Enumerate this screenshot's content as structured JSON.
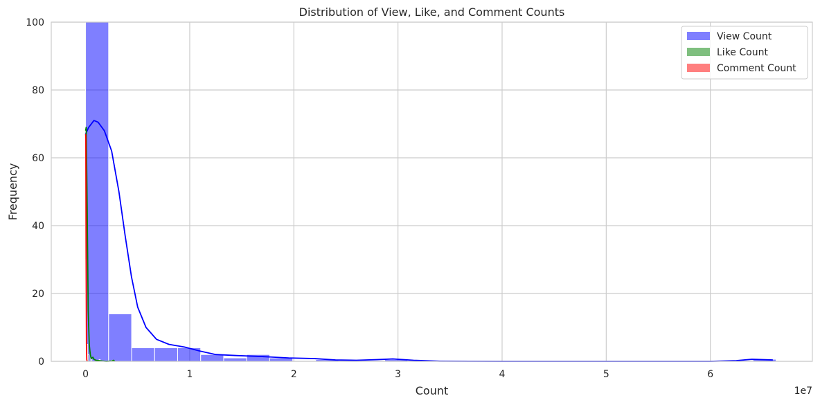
{
  "chart_data": {
    "type": "histogram",
    "title": "Distribution of View, Like, and Comment Counts",
    "xlabel": "Count",
    "ylabel": "Frequency",
    "x_offset_label": "1e7",
    "xlim": [
      -3300000,
      69800000
    ],
    "ylim": [
      0,
      100
    ],
    "x_ticks": [
      {
        "value": 0,
        "label": "0"
      },
      {
        "value": 10000000,
        "label": "1"
      },
      {
        "value": 20000000,
        "label": "2"
      },
      {
        "value": 30000000,
        "label": "3"
      },
      {
        "value": 40000000,
        "label": "4"
      },
      {
        "value": 50000000,
        "label": "5"
      },
      {
        "value": 60000000,
        "label": "6"
      }
    ],
    "y_ticks": [
      0,
      20,
      40,
      60,
      80,
      100
    ],
    "grid": true,
    "legend_position": "top-right",
    "series": [
      {
        "name": "View Count",
        "color": "#0000ff",
        "kde_color": "#0000ff",
        "bin_width": 2210000,
        "bins": [
          {
            "start": 0,
            "count": 100
          },
          {
            "start": 2210000,
            "count": 14
          },
          {
            "start": 4420000,
            "count": 4
          },
          {
            "start": 6630000,
            "count": 4
          },
          {
            "start": 8840000,
            "count": 4
          },
          {
            "start": 11050000,
            "count": 2
          },
          {
            "start": 13260000,
            "count": 1
          },
          {
            "start": 15470000,
            "count": 2
          },
          {
            "start": 17680000,
            "count": 1
          },
          {
            "start": 19890000,
            "count": 0
          },
          {
            "start": 22100000,
            "count": 0.5
          },
          {
            "start": 28730000,
            "count": 0.5
          },
          {
            "start": 64100000,
            "count": 0.6
          }
        ],
        "kde": [
          [
            0,
            67
          ],
          [
            300000,
            69
          ],
          [
            800000,
            71
          ],
          [
            1200000,
            70.5
          ],
          [
            1800000,
            68
          ],
          [
            2500000,
            62
          ],
          [
            3200000,
            50
          ],
          [
            3800000,
            37
          ],
          [
            4400000,
            25
          ],
          [
            5000000,
            16
          ],
          [
            5800000,
            10
          ],
          [
            6800000,
            6.5
          ],
          [
            8000000,
            5
          ],
          [
            9500000,
            4.2
          ],
          [
            11000000,
            3
          ],
          [
            12500000,
            2
          ],
          [
            14500000,
            1.7
          ],
          [
            17000000,
            1.4
          ],
          [
            19500000,
            1
          ],
          [
            22000000,
            0.8
          ],
          [
            24000000,
            0.4
          ],
          [
            26000000,
            0.3
          ],
          [
            28000000,
            0.5
          ],
          [
            29500000,
            0.7
          ],
          [
            31500000,
            0.3
          ],
          [
            34000000,
            0.05
          ],
          [
            40000000,
            0
          ],
          [
            60000000,
            0
          ],
          [
            62500000,
            0.2
          ],
          [
            64000000,
            0.6
          ],
          [
            66000000,
            0.4
          ]
        ]
      },
      {
        "name": "Like Count",
        "color": "#008000",
        "kde_color": "#008000",
        "bin_width": 100000,
        "bins": [
          {
            "start": 0,
            "count": 10
          },
          {
            "start": 100000,
            "count": 5
          },
          {
            "start": 200000,
            "count": 2
          },
          {
            "start": 500000,
            "count": 1
          },
          {
            "start": 1300000,
            "count": 0.5
          },
          {
            "start": 2500000,
            "count": 0.3
          }
        ],
        "kde": [
          [
            0,
            68
          ],
          [
            60000,
            69
          ],
          [
            150000,
            45
          ],
          [
            250000,
            15
          ],
          [
            350000,
            5
          ],
          [
            450000,
            2
          ],
          [
            550000,
            0.8
          ],
          [
            700000,
            1.2
          ],
          [
            800000,
            0.6
          ],
          [
            1000000,
            0.3
          ],
          [
            1300000,
            0.2
          ],
          [
            1600000,
            0.1
          ],
          [
            2000000,
            0
          ],
          [
            2500000,
            0.1
          ],
          [
            2700000,
            0.3
          ],
          [
            2800000,
            0
          ]
        ]
      },
      {
        "name": "Comment Count",
        "color": "#ff0000",
        "kde_color": "#ff0000",
        "bin_width": 40000,
        "bins": [
          {
            "start": 0,
            "count": 30
          },
          {
            "start": 40000,
            "count": 3
          }
        ],
        "kde": [
          [
            0,
            67
          ],
          [
            20000,
            66
          ],
          [
            50000,
            30
          ],
          [
            80000,
            5
          ],
          [
            110000,
            0.5
          ],
          [
            150000,
            0
          ]
        ]
      }
    ]
  }
}
